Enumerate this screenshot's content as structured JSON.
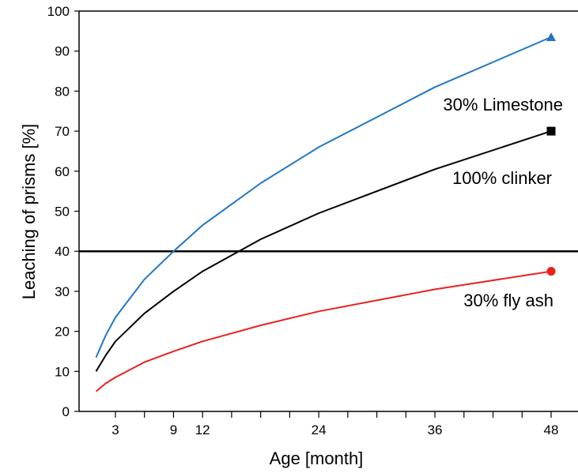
{
  "chart_data": {
    "type": "line",
    "title": "",
    "xlabel": "Age [month]",
    "ylabel": "Leaching of prisms [%]",
    "xlim": [
      0,
      50
    ],
    "ylim": [
      0,
      100
    ],
    "x_ticks_labeled": [
      3,
      9,
      12,
      24,
      36,
      48
    ],
    "x_ticks_minor": [
      6,
      15,
      18,
      21,
      27,
      30,
      33,
      39,
      42,
      45
    ],
    "y_ticks": [
      0,
      10,
      20,
      30,
      40,
      50,
      60,
      70,
      80,
      90,
      100
    ],
    "grid": false,
    "reference_line": {
      "y": 40,
      "color": "#000000"
    },
    "series": [
      {
        "name": "30% Limestone",
        "color": "#1f77c4",
        "marker": "triangle",
        "x": [
          1,
          2,
          3,
          6,
          9,
          12,
          18,
          24,
          36,
          48
        ],
        "y": [
          13.5,
          19,
          23.5,
          33,
          40,
          46.5,
          57,
          66,
          81,
          93.5
        ]
      },
      {
        "name": "100% clinker",
        "color": "#000000",
        "marker": "square",
        "x": [
          1,
          2,
          3,
          6,
          9,
          12,
          18,
          24,
          36,
          48
        ],
        "y": [
          10,
          14,
          17.5,
          24.5,
          30,
          35,
          43,
          49.5,
          60.5,
          70
        ]
      },
      {
        "name": "30% fly ash",
        "color": "#e8221e",
        "marker": "circle",
        "x": [
          1,
          2,
          3,
          6,
          9,
          12,
          18,
          24,
          36,
          48
        ],
        "y": [
          5,
          7,
          8.5,
          12.3,
          15,
          17.5,
          21.5,
          25,
          30.5,
          35
        ]
      }
    ]
  }
}
